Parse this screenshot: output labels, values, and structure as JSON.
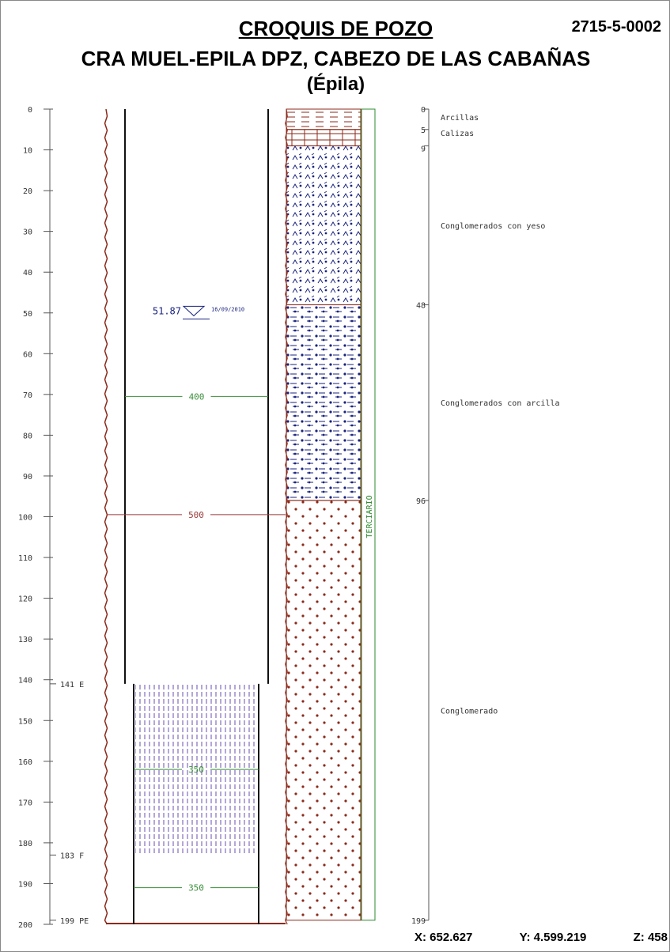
{
  "header": {
    "title": "CROQUIS DE POZO",
    "code": "2715-5-0002",
    "subtitle": "CRA MUEL-EPILA DPZ, CABEZO DE LAS CABAÑAS",
    "location": "(Épila)"
  },
  "depth_axis": {
    "min": 0,
    "max": 200,
    "ticks": [
      0,
      10,
      20,
      30,
      40,
      50,
      60,
      70,
      80,
      90,
      100,
      110,
      120,
      130,
      140,
      150,
      160,
      170,
      180,
      190,
      200
    ]
  },
  "construction_markers": [
    {
      "depth": 141,
      "label": "141 E"
    },
    {
      "depth": 183,
      "label": "183 F"
    },
    {
      "depth": 199,
      "label": "199 PE"
    }
  ],
  "water_level": {
    "depth": 51.87,
    "label": "51.87",
    "date": "16/09/2010"
  },
  "diameters": [
    {
      "depth": 70.5,
      "label": "400",
      "color": "#3a8f3a"
    },
    {
      "depth": 99.5,
      "label": "500",
      "color": "#9b3a3a"
    },
    {
      "depth": 162,
      "label": "350",
      "color": "#3a8f3a"
    },
    {
      "depth": 191,
      "label": "350",
      "color": "#3a8f3a"
    }
  ],
  "casing": {
    "top": 0,
    "bottom": 141
  },
  "screen": {
    "top": 141,
    "bottom": 183
  },
  "lithology": [
    {
      "top": 0,
      "bottom": 5,
      "depth_label": "0",
      "name": "Arcillas",
      "pattern": "clay"
    },
    {
      "top": 5,
      "bottom": 9,
      "depth_label": "5",
      "name": "Calizas",
      "pattern": "limestone"
    },
    {
      "top": 9,
      "bottom": 48,
      "depth_label": "9",
      "name": "Conglomerados con yeso",
      "pattern": "gypsum"
    },
    {
      "top": 48,
      "bottom": 96,
      "depth_label": "48",
      "name": "Conglomerados con arcilla",
      "pattern": "claycong"
    },
    {
      "top": 96,
      "bottom": 199,
      "depth_label": "96",
      "name": "Conglomerado",
      "pattern": "cong"
    }
  ],
  "total_depth_label": "199",
  "age": "TERCIARIO",
  "coordinates": {
    "x": "X: 652.627",
    "y": "Y: 4.599.219",
    "z": "Z: 458"
  },
  "colors": {
    "brown": "#8b2a1a",
    "blue": "#1a237e",
    "green": "#2e8b2e",
    "screen": "#6a4fb0"
  }
}
